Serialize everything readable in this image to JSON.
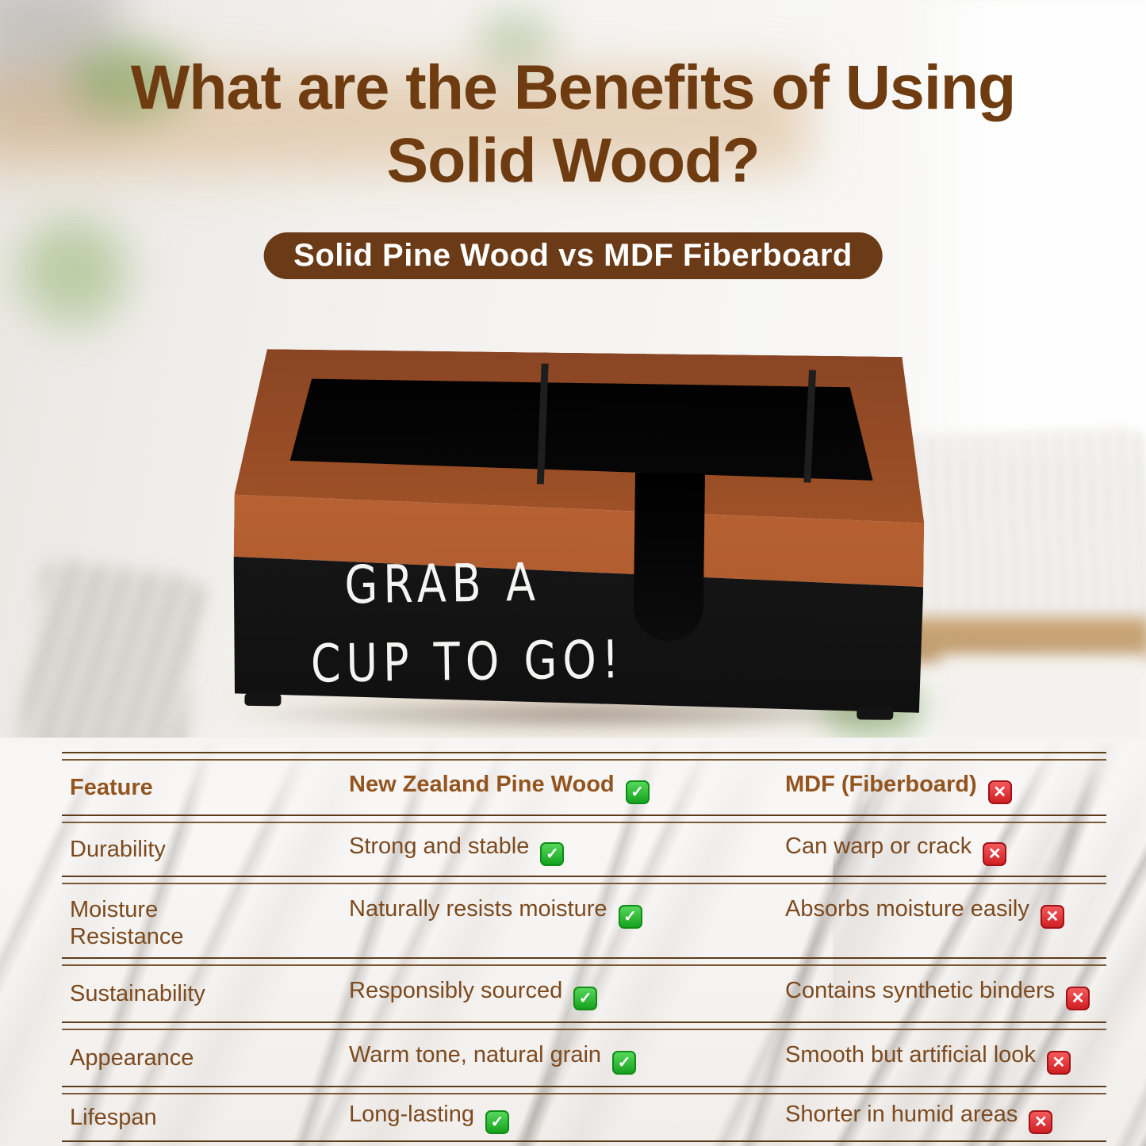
{
  "header": {
    "title_line1": "What are the Benefits of Using",
    "title_line2": "Solid Wood?",
    "subtitle_pill": "Solid Pine Wood vs MDF Fiberboard"
  },
  "product": {
    "chalk_line1": "GRAB A",
    "chalk_line2": "CUP TO GO!"
  },
  "comparison_table": {
    "header": {
      "feature": "Feature",
      "pine": "New Zealand Pine Wood",
      "mdf": "MDF (Fiberboard)"
    },
    "rows": [
      {
        "feature": "Durability",
        "pine": "Strong and stable",
        "mdf": "Can warp or crack"
      },
      {
        "feature": "Moisture Resistance",
        "pine": "Naturally resists moisture",
        "mdf": "Absorbs moisture easily"
      },
      {
        "feature": "Sustainability",
        "pine": "Responsibly sourced",
        "mdf": "Contains synthetic binders"
      },
      {
        "feature": "Appearance",
        "pine": "Warm tone, natural grain",
        "mdf": "Smooth but artificial look"
      },
      {
        "feature": "Lifespan",
        "pine": "Long-lasting",
        "mdf": "Shorter in humid areas"
      }
    ],
    "icons": {
      "check": "✓",
      "cross": "✕"
    }
  },
  "colors": {
    "title_brown": "#6e3c10",
    "pill_brown": "#6b3a16",
    "table_text_brown": "#7c4a1e",
    "check_green": "#17a21f",
    "cross_red": "#d01f24",
    "wood_rim": "#b65f33",
    "chalkboard_black": "#151515"
  }
}
